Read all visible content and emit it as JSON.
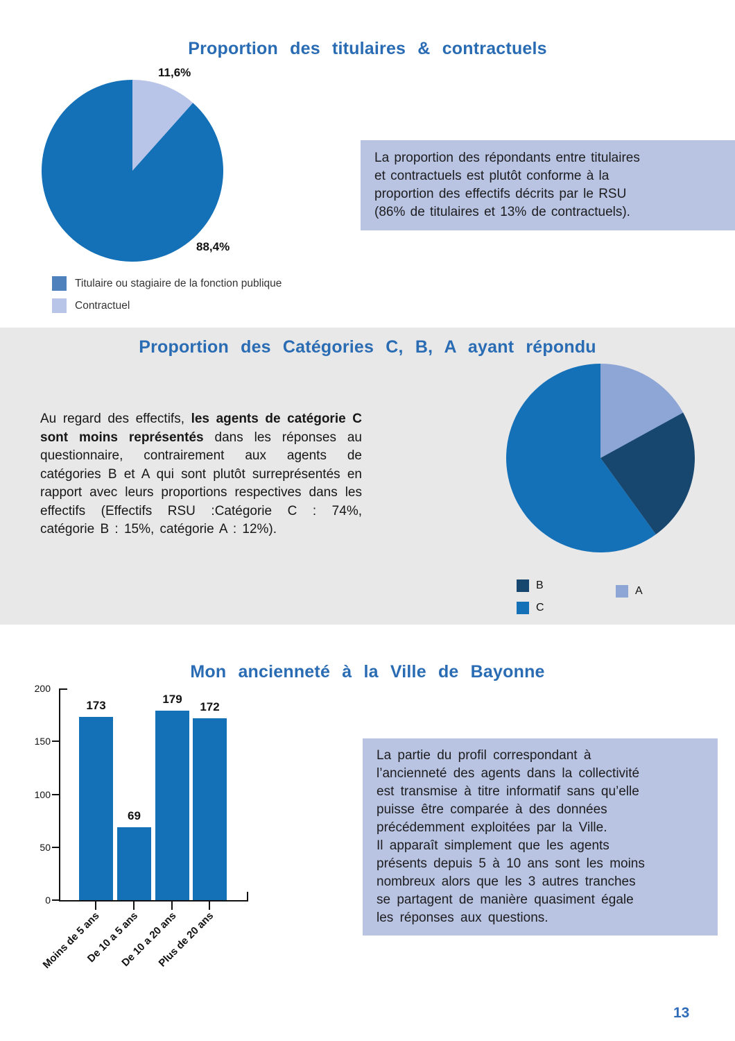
{
  "page": {
    "number": "13"
  },
  "section1": {
    "title": "Proportion des titulaires & contractuels",
    "note": "La proportion des répondants entre titulaires\net contractuels est plutôt conforme à la\nproportion des effectifs décrits par le RSU\n(86% de titulaires et 13% de contractuels).",
    "legend": [
      {
        "label": "Titulaire ou stagiaire de la fonction publique",
        "color": "#4f81bd"
      },
      {
        "label": "Contractuel",
        "color": "#b9c5e8"
      }
    ]
  },
  "section2": {
    "title": "Proportion des Catégories C, B, A ayant répondu",
    "paragraph": {
      "part1": "Au regard des effectifs, ",
      "bold": "les agents de catégorie C sont moins représentés",
      "part2": " dans les réponses au questionnaire, contrairement aux agents de catégories B et A qui sont plutôt surreprésentés en rapport avec leurs proportions respectives dans les effectifs (Effectifs RSU :Catégorie C : 74%, catégorie B : 15%, catégorie A : 12%)."
    }
  },
  "section3": {
    "title": "Mon ancienneté à la Ville de Bayonne",
    "note": "La partie du profil correspondant à\nl’ancienneté des agents dans la collectivité\nest transmise à titre informatif sans qu’elle\npuisse être comparée à des données\nprécédemment exploitées par la Ville.\nIl apparaît simplement que les agents\nprésents depuis 5 à 10 ans sont les moins\nnombreux alors que les 3 autres tranches\nse partagent de manière quasiment égale\nles réponses aux questions."
  },
  "chart_data": [
    {
      "type": "pie",
      "title": "Proportion des titulaires & contractuels",
      "start": "top",
      "direction": "clockwise",
      "slices": [
        {
          "label": "Contractuel",
          "value": 11.6,
          "display": "11,6%",
          "color": "#b9c5e8"
        },
        {
          "label": "Titulaire ou stagiaire de la fonction publique",
          "value": 88.4,
          "display": "88,4%",
          "color": "#1471b8"
        }
      ]
    },
    {
      "type": "pie",
      "title": "Proportion des Catégories C, B, A ayant répondu",
      "start": "top",
      "direction": "clockwise",
      "values_estimated_from_angles": true,
      "slices": [
        {
          "label": "A",
          "value": 17,
          "color": "#8da6d6"
        },
        {
          "label": "B",
          "value": 23,
          "color": "#17476e"
        },
        {
          "label": "C",
          "value": 60,
          "color": "#1471b8"
        }
      ]
    },
    {
      "type": "bar",
      "title": "Mon ancienneté à la Ville de Bayonne",
      "categories": [
        "Moins de 5 ans",
        "De 10 a 5 ans",
        "De 10 a 20 ans",
        "Plus de 20 ans"
      ],
      "values": [
        173,
        69,
        179,
        172
      ],
      "bar_color": "#1471b8",
      "ylim": [
        0,
        200
      ],
      "yticks": [
        0,
        50,
        100,
        150,
        200
      ],
      "xlabel": "",
      "ylabel": ""
    }
  ]
}
